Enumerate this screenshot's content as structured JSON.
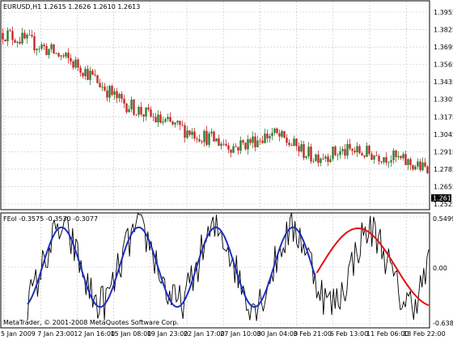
{
  "main_chart": {
    "symbol_header": "EURUSD,H1  1.2615 1.2626 1.2610 1.2613",
    "price_axis_labels": [
      "1.3955",
      "1.3825",
      "1.3695",
      "1.3565",
      "1.3435",
      "1.3305",
      "1.3175",
      "1.3045",
      "1.2915",
      "1.2785",
      "1.2655",
      "1.2525"
    ],
    "current_price": "1.2613"
  },
  "indicator": {
    "header": "FEol -0.3575 -0.3530 -0.3077",
    "axis_labels": [
      "0.5499",
      "0.00",
      "-0.6383"
    ]
  },
  "time_axis_labels": [
    "5 Jan 2009",
    "7 Jan 23:00",
    "12 Jan 16:00",
    "15 Jan 08:00",
    "19 Jan 23:00",
    "22 Jan 17:00",
    "27 Jan 10:00",
    "30 Jan 04:00",
    "3 Feb 21:00",
    "6 Feb 13:00",
    "11 Feb 06:00",
    "13 Feb 22:00"
  ],
  "copyright": "MetaTrader, © 2001-2008 MetaQuotes Software Corp.",
  "colors": {
    "background": "#ffffff",
    "grid": "#c0c0c0",
    "bull_candle": "#2e7d32",
    "bear_candle": "#c62828",
    "indicator_fit": "#1f2fbf",
    "indicator_forecast": "#e01010",
    "price_line": "#000000"
  },
  "chart_data": [
    {
      "type": "line",
      "title": "EURUSD,H1",
      "ylim": [
        1.2525,
        1.3955
      ],
      "x": [
        "5 Jan 2009",
        "7 Jan 23:00",
        "12 Jan 16:00",
        "15 Jan 08:00",
        "19 Jan 23:00",
        "22 Jan 17:00",
        "27 Jan 10:00",
        "30 Jan 04:00",
        "3 Feb 21:00",
        "6 Feb 13:00",
        "11 Feb 06:00",
        "13 Feb 22:00"
      ],
      "series": [
        {
          "values": [
            1.38,
            1.37,
            1.355,
            1.33,
            1.315,
            1.305,
            1.295,
            1.305,
            1.288,
            1.292,
            1.288,
            1.278
          ]
        }
      ]
    }
  ]
}
